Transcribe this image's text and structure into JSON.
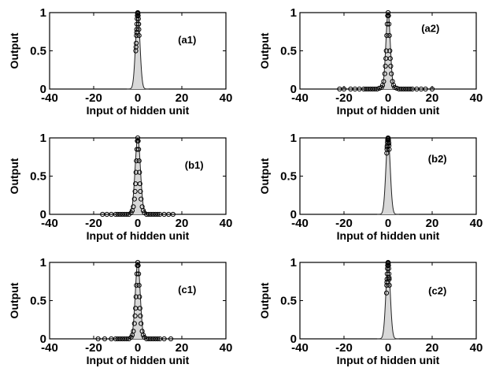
{
  "figure_text": {
    "panels": [
      {
        "label": "(a1)",
        "ylabel": "Output",
        "xlabel": "Input of hidden unit"
      },
      {
        "label": "(a2)",
        "ylabel": "Output",
        "xlabel": "Input of hidden unit"
      },
      {
        "label": "(b1)",
        "ylabel": "Output",
        "xlabel": "Input of hidden unit"
      },
      {
        "label": "(b2)",
        "ylabel": "Output",
        "xlabel": "Input of hidden unit"
      },
      {
        "label": "(c1)",
        "ylabel": "Output",
        "xlabel": "Input of hidden unit"
      },
      {
        "label": "(c2)",
        "ylabel": "Output",
        "xlabel": "Input of hidden unit"
      }
    ]
  },
  "chart_data": [
    {
      "type": "scatter",
      "title": "(a1)",
      "xlabel": "Input of hidden unit",
      "ylabel": "Output",
      "xlim": [
        -40,
        40
      ],
      "ylim": [
        0,
        1
      ],
      "x_ticks": [
        "-40",
        "-20",
        "0",
        "20",
        "40"
      ],
      "y_ticks": [
        "0",
        "0.5",
        "1"
      ],
      "grid": false,
      "curve": "gaussian",
      "curve_width": 1.0,
      "series": [
        {
          "x": [
            -0.7,
            -0.6,
            -0.5,
            -0.4,
            -0.3,
            -0.2,
            -0.1,
            0.0,
            0.1,
            0.2,
            0.3,
            0.4,
            0.5,
            -0.5,
            0.4,
            -0.9,
            0.6,
            -0.8
          ],
          "y": [
            0.6,
            0.7,
            0.78,
            0.85,
            0.92,
            0.96,
            0.99,
            1.0,
            0.99,
            0.96,
            0.92,
            0.85,
            0.78,
            0.74,
            0.85,
            0.5,
            0.7,
            0.55
          ]
        }
      ]
    },
    {
      "type": "scatter",
      "title": "(a2)",
      "xlabel": "Input of hidden unit",
      "ylabel": "Output",
      "xlim": [
        -40,
        40
      ],
      "ylim": [
        0,
        1
      ],
      "x_ticks": [
        "-40",
        "-20",
        "0",
        "20",
        "40"
      ],
      "y_ticks": [
        "0",
        "0.5",
        "1"
      ],
      "grid": false,
      "curve": "gaussian",
      "curve_width": 1.0,
      "series": [
        {
          "x": [
            -22,
            -20,
            -17,
            -15,
            -13,
            -11,
            -10,
            -9,
            -8,
            -7,
            -6,
            -5,
            -4,
            -3,
            -2.5,
            -2,
            -1.5,
            -1.2,
            -1.0,
            -0.8,
            -0.6,
            -0.4,
            -0.2,
            0.0,
            0.2,
            0.4,
            0.6,
            0.8,
            1.0,
            1.2,
            1.5,
            2,
            2.5,
            3,
            4,
            5,
            6,
            7,
            8,
            9,
            10,
            11,
            13,
            15,
            17,
            20
          ],
          "y": [
            0,
            0,
            0,
            0,
            0,
            0,
            0,
            0,
            0,
            0,
            0,
            0,
            0.01,
            0.02,
            0.05,
            0.1,
            0.2,
            0.3,
            0.4,
            0.5,
            0.7,
            0.85,
            0.96,
            1.0,
            0.96,
            0.85,
            0.7,
            0.5,
            0.4,
            0.3,
            0.2,
            0.1,
            0.05,
            0.02,
            0.01,
            0,
            0,
            0,
            0,
            0,
            0,
            0,
            0,
            0,
            0,
            0
          ]
        }
      ]
    },
    {
      "type": "scatter",
      "title": "(b1)",
      "xlabel": "Input of hidden unit",
      "ylabel": "Output",
      "xlim": [
        -40,
        40
      ],
      "ylim": [
        0,
        1
      ],
      "x_ticks": [
        "-40",
        "-20",
        "0",
        "20",
        "40"
      ],
      "y_ticks": [
        "0",
        "0.5",
        "1"
      ],
      "grid": false,
      "curve": "gaussian",
      "curve_width": 1.2,
      "series": [
        {
          "x": [
            -16,
            -14,
            -12,
            -10,
            -9,
            -8,
            -7,
            -6,
            -5,
            -4,
            -3,
            -2.5,
            -2,
            -1.5,
            -1.2,
            -1.0,
            -0.8,
            -0.6,
            -0.4,
            -0.2,
            0.0,
            0.2,
            0.4,
            0.6,
            0.8,
            1.0,
            1.2,
            1.5,
            2,
            2.5,
            3,
            4,
            5,
            6,
            7,
            8,
            9,
            10,
            12,
            14,
            16
          ],
          "y": [
            0,
            0,
            0,
            0,
            0,
            0,
            0,
            0,
            0,
            0,
            0.02,
            0.05,
            0.1,
            0.2,
            0.3,
            0.4,
            0.55,
            0.7,
            0.85,
            0.96,
            1.0,
            0.96,
            0.85,
            0.7,
            0.55,
            0.4,
            0.3,
            0.2,
            0.1,
            0.05,
            0.02,
            0,
            0,
            0,
            0,
            0,
            0,
            0,
            0,
            0,
            0
          ]
        }
      ]
    },
    {
      "type": "scatter",
      "title": "(b2)",
      "xlabel": "Input of hidden unit",
      "ylabel": "Output",
      "xlim": [
        -40,
        40
      ],
      "ylim": [
        0,
        1
      ],
      "x_ticks": [
        "-40",
        "-20",
        "0",
        "20",
        "40"
      ],
      "y_ticks": [
        "0",
        "0.5",
        "1"
      ],
      "grid": false,
      "curve": "gaussian",
      "curve_width": 1.0,
      "series": [
        {
          "x": [
            -0.6,
            -0.5,
            -0.4,
            -0.3,
            -0.2,
            -0.1,
            0.0,
            0.1,
            0.2,
            0.3,
            0.4,
            0.5,
            -0.45,
            0.35
          ],
          "y": [
            0.8,
            0.85,
            0.9,
            0.94,
            0.97,
            0.99,
            1.0,
            0.99,
            0.97,
            0.94,
            0.9,
            0.85,
            0.88,
            0.93
          ]
        }
      ]
    },
    {
      "type": "scatter",
      "title": "(c1)",
      "xlabel": "Input of hidden unit",
      "ylabel": "Output",
      "xlim": [
        -40,
        40
      ],
      "ylim": [
        0,
        1
      ],
      "x_ticks": [
        "-40",
        "-20",
        "0",
        "20",
        "40"
      ],
      "y_ticks": [
        "0",
        "0.5",
        "1"
      ],
      "grid": false,
      "curve": "gaussian",
      "curve_width": 1.1,
      "series": [
        {
          "x": [
            -18,
            -15,
            -12,
            -10,
            -9,
            -8,
            -7,
            -6,
            -5,
            -4,
            -3,
            -2.5,
            -2,
            -1.5,
            -1.2,
            -1.0,
            -0.8,
            -0.6,
            -0.4,
            -0.2,
            0.0,
            0.2,
            0.4,
            0.6,
            0.8,
            1.0,
            1.2,
            1.5,
            2,
            2.5,
            3,
            4,
            5,
            6,
            7,
            8,
            9,
            10,
            12,
            15
          ],
          "y": [
            0,
            0,
            0,
            0,
            0,
            0,
            0,
            0,
            0,
            0,
            0.02,
            0.05,
            0.1,
            0.2,
            0.3,
            0.4,
            0.55,
            0.7,
            0.85,
            0.96,
            1.0,
            0.96,
            0.85,
            0.7,
            0.55,
            0.4,
            0.3,
            0.2,
            0.1,
            0.05,
            0.02,
            0,
            0,
            0,
            0,
            0,
            0,
            0,
            0,
            0
          ]
        }
      ]
    },
    {
      "type": "scatter",
      "title": "(c2)",
      "xlabel": "Input of hidden unit",
      "ylabel": "Output",
      "xlim": [
        -40,
        40
      ],
      "ylim": [
        0,
        1
      ],
      "x_ticks": [
        "-40",
        "-20",
        "0",
        "20",
        "40"
      ],
      "y_ticks": [
        "0",
        "0.5",
        "1"
      ],
      "grid": false,
      "curve": "gaussian",
      "curve_width": 1.0,
      "series": [
        {
          "x": [
            -0.7,
            -0.6,
            -0.5,
            -0.4,
            -0.3,
            -0.2,
            -0.1,
            0.0,
            0.1,
            0.2,
            0.3,
            0.4,
            0.5,
            0.6,
            -0.55,
            0.45
          ],
          "y": [
            0.6,
            0.7,
            0.78,
            0.85,
            0.92,
            0.96,
            0.99,
            1.0,
            0.99,
            0.96,
            0.92,
            0.85,
            0.78,
            0.7,
            0.74,
            0.8
          ]
        }
      ]
    }
  ]
}
